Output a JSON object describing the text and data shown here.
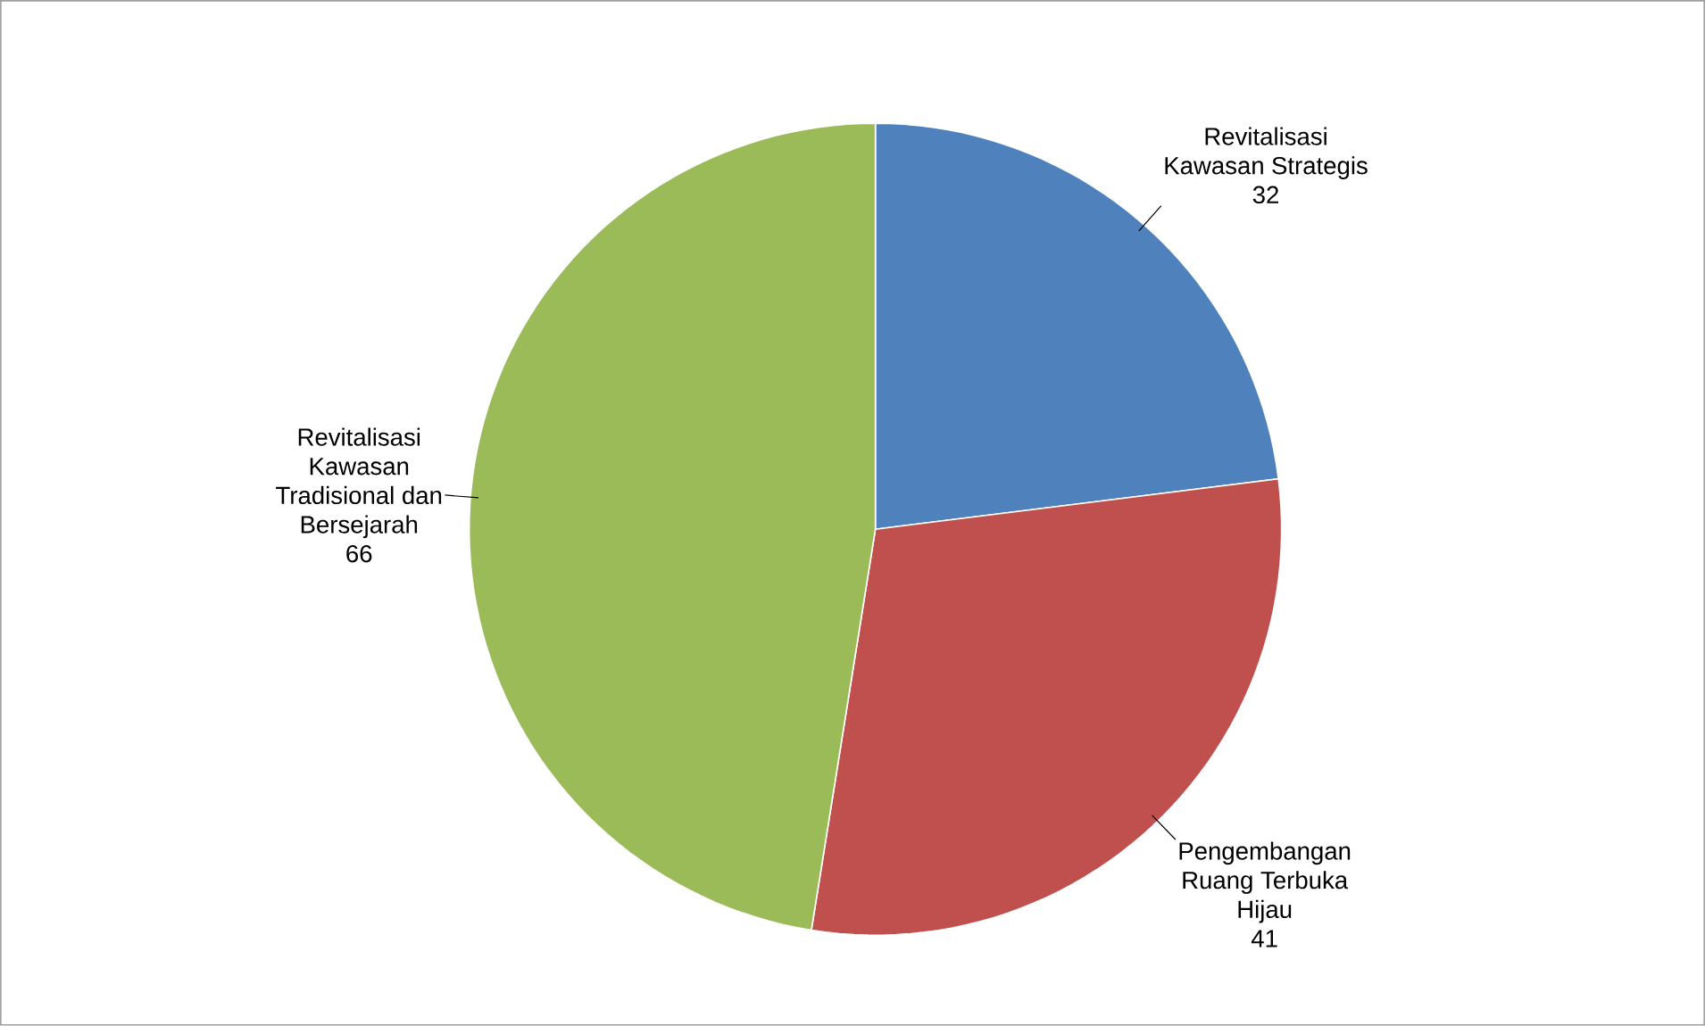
{
  "chart_data": {
    "type": "pie",
    "categories": [
      "Revitalisasi Kawasan Strategis",
      "Pengembangan Ruang Terbuka Hijau",
      "Revitalisasi Kawasan Tradisional dan Bersejarah"
    ],
    "values": [
      32,
      41,
      66
    ],
    "colors": [
      "#4f81bd",
      "#c0504d",
      "#9bbb59"
    ],
    "data_labels": true
  }
}
